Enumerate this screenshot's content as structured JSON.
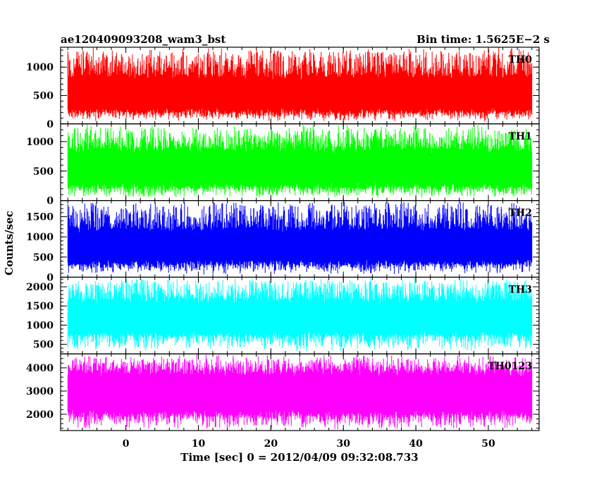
{
  "chart_data": {
    "type": "line",
    "title_left": "ae120409093208_wam3_bst",
    "title_right": "Bin time: 1.5625E−2 s",
    "xlabel": "Time [sec] 0 = 2012/04/09 09:32:08.733",
    "ylabel": "Counts/sec",
    "xlim": [
      -9,
      57
    ],
    "x_data_range": [
      -8,
      56
    ],
    "xticks": [
      0,
      10,
      20,
      30,
      40,
      50
    ],
    "xtick_labels": [
      "0",
      "10",
      "20",
      "30",
      "40",
      "50"
    ],
    "panels": [
      {
        "name": "TH0",
        "color": "#ff0000",
        "ylim": [
          0,
          1350
        ],
        "yticks": [
          0,
          500,
          1000
        ],
        "ytick_labels": [
          "0",
          "500",
          "1000"
        ],
        "typical_range": [
          180,
          880
        ],
        "extreme_range": [
          30,
          1350
        ]
      },
      {
        "name": "TH1",
        "color": "#00ff00",
        "ylim": [
          0,
          1300
        ],
        "yticks": [
          0,
          500,
          1000
        ],
        "ytick_labels": [
          "0",
          "500",
          "1000"
        ],
        "typical_range": [
          200,
          900
        ],
        "extreme_range": [
          40,
          1300
        ]
      },
      {
        "name": "TH2",
        "color": "#0000ff",
        "ylim": [
          0,
          1900
        ],
        "yticks": [
          0,
          500,
          1000,
          1500
        ],
        "ytick_labels": [
          "0",
          "500",
          "1000",
          "1500"
        ],
        "typical_range": [
          300,
          1250
        ],
        "extreme_range": [
          60,
          1900
        ]
      },
      {
        "name": "TH3",
        "color": "#00ffff",
        "ylim": [
          250,
          2250
        ],
        "yticks": [
          500,
          1000,
          1500,
          2000
        ],
        "ytick_labels": [
          "500",
          "1000",
          "1500",
          "2000"
        ],
        "typical_range": [
          700,
          1700
        ],
        "extreme_range": [
          300,
          2250
        ]
      },
      {
        "name": "TH0123",
        "color": "#ff00ff",
        "ylim": [
          1300,
          4600
        ],
        "yticks": [
          2000,
          3000,
          4000
        ],
        "ytick_labels": [
          "2000",
          "3000",
          "4000"
        ],
        "typical_range": [
          1900,
          3900
        ],
        "extreme_range": [
          1320,
          4600
        ]
      }
    ]
  }
}
